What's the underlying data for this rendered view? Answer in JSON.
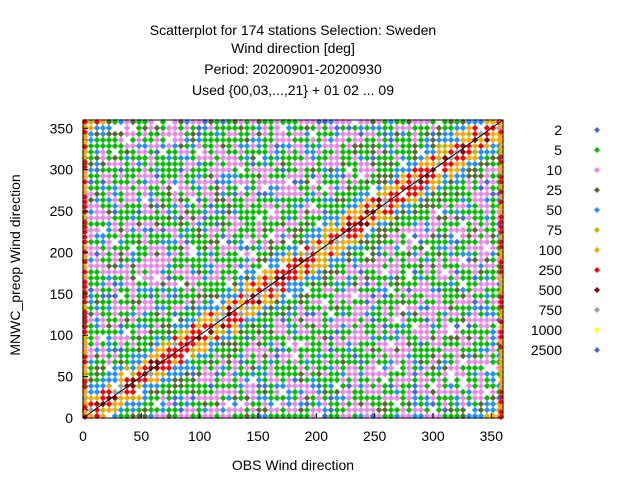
{
  "chart_data": {
    "type": "scatter",
    "title_lines": [
      "Scatterplot for  174 stations Selection: Sweden",
      "Wind direction [deg]",
      "Period: 20200901-20200930",
      "Used {00,03,...,21} + 01 02 ... 09"
    ],
    "xlabel": "OBS Wind direction",
    "ylabel": "MNWC_preop Wind direction",
    "xlim": [
      0,
      360
    ],
    "ylim": [
      0,
      360
    ],
    "x_ticks": [
      0,
      50,
      100,
      150,
      200,
      250,
      300,
      350
    ],
    "y_ticks": [
      0,
      50,
      100,
      150,
      200,
      250,
      300,
      350
    ],
    "reference_line": {
      "from": [
        0,
        0
      ],
      "to": [
        360,
        360
      ]
    },
    "legend_position": "right",
    "color_scale": [
      {
        "label": "2",
        "color": "#4169e1"
      },
      {
        "label": "5",
        "color": "#00c000"
      },
      {
        "label": "10",
        "color": "#ee82ee"
      },
      {
        "label": "25",
        "color": "#556b2f"
      },
      {
        "label": "50",
        "color": "#1e90ff"
      },
      {
        "label": "75",
        "color": "#c8b400"
      },
      {
        "label": "100",
        "color": "#ffa500"
      },
      {
        "label": "250",
        "color": "#ff0000"
      },
      {
        "label": "500",
        "color": "#8b0000"
      },
      {
        "label": "750",
        "color": "#a0a0a0"
      },
      {
        "label": "1000",
        "color": "#ffff00"
      },
      {
        "label": "2500",
        "color": "#4169e1"
      }
    ]
  }
}
